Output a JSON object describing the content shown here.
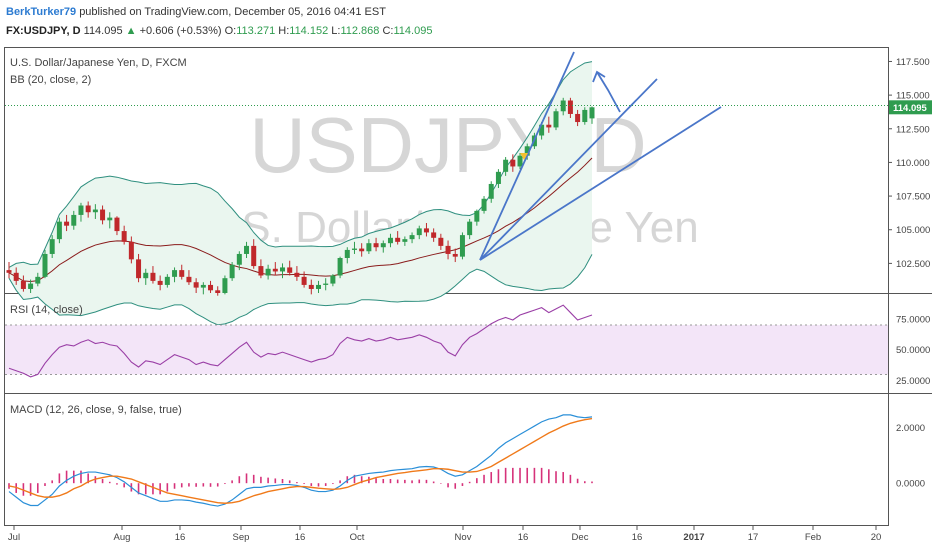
{
  "header": {
    "author": "BerkTurker79",
    "published": "published on TradingView.com, December 05, 2016 04:41 EST",
    "symbol": "FX:USDJPY, D",
    "price": "114.095",
    "change": "+0.606 (+0.53%)",
    "o_label": "O:",
    "o": "113.271",
    "h_label": "H:",
    "h": "114.152",
    "l_label": "L:",
    "l": "112.868",
    "c_label": "C:",
    "c": "114.095"
  },
  "watermark": {
    "symbol": "USDJPY, D",
    "name": "U.S. Dollar/Japanese Yen"
  },
  "panes": {
    "main": {
      "title": "U.S. Dollar/Japanese Yen, D, FXCM",
      "indicator": "BB (20, close, 2)"
    },
    "rsi": {
      "title": "RSI (14, close)"
    },
    "macd": {
      "title": "MACD (12, 26, close, 9, false, true)"
    }
  },
  "colors": {
    "up": "#2f9c4f",
    "down": "#c0282b",
    "bb_band": "#2f8f7f",
    "bb_basis": "#8a1c1c",
    "bb_fill": "#eaf6ef",
    "rsi_line": "#9a3fa6",
    "rsi_band": "#f3e5f8",
    "macd": "#2a8fd8",
    "signal": "#f07a1a",
    "hist": "#d6327a",
    "trendline": "#4a76c9"
  },
  "chart_data": [
    {
      "type": "candlestick",
      "title": "U.S. Dollar/Japanese Yen, D, FXCM",
      "ylim": [
        100.3,
        118.5
      ],
      "y_ticks": [
        "117.500",
        "115.000",
        "112.500",
        "110.000",
        "107.500",
        "105.000",
        "102.500"
      ],
      "last_price": "114.095",
      "x_ticks": [
        "Jul",
        "Aug",
        "16",
        "Sep",
        "16",
        "Oct",
        "Nov",
        "16",
        "Dec",
        "16",
        "2017",
        "17",
        "Feb",
        "20"
      ],
      "ohlc": [
        [
          102.0,
          102.6,
          101.4,
          101.8
        ],
        [
          101.8,
          102.2,
          100.9,
          101.2
        ],
        [
          101.2,
          101.6,
          100.4,
          100.6
        ],
        [
          100.6,
          101.3,
          100.3,
          101.0
        ],
        [
          101.0,
          101.8,
          100.8,
          101.5
        ],
        [
          101.5,
          103.5,
          101.4,
          103.2
        ],
        [
          103.2,
          104.6,
          102.9,
          104.3
        ],
        [
          104.3,
          105.9,
          104.0,
          105.6
        ],
        [
          105.6,
          106.1,
          104.9,
          105.3
        ],
        [
          105.3,
          106.4,
          105.0,
          106.1
        ],
        [
          106.1,
          107.0,
          105.6,
          106.8
        ],
        [
          106.8,
          107.1,
          105.9,
          106.3
        ],
        [
          106.3,
          106.9,
          105.8,
          106.5
        ],
        [
          106.5,
          106.8,
          105.4,
          105.7
        ],
        [
          105.7,
          106.3,
          105.1,
          105.9
        ],
        [
          105.9,
          106.0,
          104.6,
          104.9
        ],
        [
          104.9,
          105.3,
          103.9,
          104.1
        ],
        [
          104.1,
          104.5,
          102.5,
          102.8
        ],
        [
          102.8,
          103.2,
          101.1,
          101.4
        ],
        [
          101.4,
          102.1,
          100.9,
          101.8
        ],
        [
          101.8,
          102.3,
          101.0,
          101.2
        ],
        [
          101.2,
          101.6,
          100.5,
          100.9
        ],
        [
          100.9,
          101.7,
          100.7,
          101.5
        ],
        [
          101.5,
          102.2,
          101.1,
          102.0
        ],
        [
          102.0,
          102.4,
          101.3,
          101.5
        ],
        [
          101.5,
          102.0,
          100.9,
          101.1
        ],
        [
          101.1,
          101.4,
          100.3,
          100.7
        ],
        [
          100.7,
          101.1,
          100.2,
          100.9
        ],
        [
          100.9,
          101.2,
          100.3,
          100.5
        ],
        [
          100.5,
          100.8,
          100.1,
          100.3
        ],
        [
          100.3,
          101.6,
          100.2,
          101.4
        ],
        [
          101.4,
          102.6,
          101.2,
          102.4
        ],
        [
          102.4,
          103.4,
          102.0,
          103.2
        ],
        [
          103.2,
          104.1,
          102.9,
          103.8
        ],
        [
          103.8,
          104.3,
          102.1,
          102.3
        ],
        [
          102.3,
          102.8,
          101.4,
          101.6
        ],
        [
          101.6,
          102.4,
          101.3,
          102.1
        ],
        [
          102.1,
          102.6,
          101.6,
          101.9
        ],
        [
          101.9,
          102.5,
          101.4,
          102.2
        ],
        [
          102.2,
          102.7,
          101.6,
          101.8
        ],
        [
          101.8,
          102.3,
          101.2,
          101.5
        ],
        [
          101.5,
          101.9,
          100.7,
          100.9
        ],
        [
          100.9,
          101.3,
          100.2,
          100.6
        ],
        [
          100.6,
          101.2,
          100.3,
          100.9
        ],
        [
          100.9,
          101.4,
          100.5,
          101.0
        ],
        [
          101.0,
          101.7,
          100.8,
          101.6
        ],
        [
          101.6,
          103.0,
          101.4,
          102.9
        ],
        [
          102.9,
          103.7,
          102.5,
          103.5
        ],
        [
          103.5,
          104.1,
          103.2,
          103.6
        ],
        [
          103.6,
          104.0,
          103.0,
          103.4
        ],
        [
          103.4,
          104.3,
          103.2,
          104.0
        ],
        [
          104.0,
          104.4,
          103.4,
          103.7
        ],
        [
          103.7,
          104.2,
          103.3,
          104.0
        ],
        [
          104.0,
          104.7,
          103.7,
          104.4
        ],
        [
          104.4,
          104.9,
          103.9,
          104.1
        ],
        [
          104.1,
          104.5,
          103.8,
          104.3
        ],
        [
          104.3,
          104.8,
          104.0,
          104.6
        ],
        [
          104.6,
          105.3,
          104.3,
          105.1
        ],
        [
          105.1,
          105.5,
          104.5,
          104.8
        ],
        [
          104.8,
          105.1,
          104.1,
          104.4
        ],
        [
          104.4,
          104.7,
          103.5,
          103.8
        ],
        [
          103.8,
          104.2,
          102.8,
          103.2
        ],
        [
          103.2,
          103.6,
          102.6,
          103.0
        ],
        [
          103.0,
          104.8,
          102.8,
          104.6
        ],
        [
          104.6,
          105.8,
          104.3,
          105.6
        ],
        [
          105.6,
          106.5,
          105.3,
          106.4
        ],
        [
          106.4,
          107.5,
          106.2,
          107.3
        ],
        [
          107.3,
          108.6,
          107.0,
          108.4
        ],
        [
          108.4,
          109.5,
          108.1,
          109.3
        ],
        [
          109.3,
          110.4,
          109.0,
          110.2
        ],
        [
          110.2,
          110.6,
          109.3,
          109.7
        ],
        [
          109.7,
          110.7,
          109.5,
          110.5
        ],
        [
          110.5,
          111.4,
          110.2,
          111.2
        ],
        [
          111.2,
          112.2,
          111.0,
          112.0
        ],
        [
          112.0,
          113.0,
          111.7,
          112.8
        ],
        [
          112.8,
          113.4,
          112.2,
          112.6
        ],
        [
          112.6,
          114.0,
          112.4,
          113.8
        ],
        [
          113.8,
          114.8,
          113.5,
          114.6
        ],
        [
          114.6,
          114.8,
          113.3,
          113.6
        ],
        [
          113.6,
          113.9,
          112.7,
          113.0
        ],
        [
          113.0,
          114.1,
          112.8,
          113.9
        ],
        [
          113.271,
          114.152,
          112.868,
          114.095
        ]
      ]
    },
    {
      "type": "line",
      "title": "RSI (14, close)",
      "ylim": [
        15,
        95
      ],
      "y_ticks": [
        "75.0000",
        "50.0000",
        "25.0000"
      ],
      "band": [
        30,
        70
      ],
      "values": [
        35,
        33,
        31,
        28,
        30,
        39,
        46,
        52,
        54,
        53,
        56,
        58,
        55,
        56,
        54,
        53,
        47,
        40,
        36,
        41,
        40,
        38,
        42,
        46,
        44,
        42,
        38,
        40,
        38,
        37,
        42,
        47,
        52,
        56,
        48,
        44,
        47,
        46,
        48,
        46,
        44,
        42,
        40,
        42,
        43,
        46,
        55,
        60,
        58,
        57,
        59,
        57,
        58,
        60,
        58,
        59,
        60,
        62,
        60,
        57,
        55,
        48,
        45,
        54,
        60,
        63,
        67,
        71,
        74,
        76,
        74,
        78,
        80,
        82,
        84,
        80,
        83,
        86,
        80,
        74,
        76,
        78
      ]
    },
    {
      "type": "line",
      "title": "MACD (12, 26, close, 9, false, true)",
      "ylim": [
        -1.5,
        3.2
      ],
      "y_ticks": [
        "2.0000",
        "0.0000"
      ],
      "series": [
        {
          "name": "MACD",
          "values": [
            -0.3,
            -0.5,
            -0.7,
            -0.8,
            -0.8,
            -0.6,
            -0.4,
            -0.1,
            0.1,
            0.25,
            0.35,
            0.4,
            0.4,
            0.35,
            0.3,
            0.2,
            0.05,
            -0.15,
            -0.35,
            -0.45,
            -0.55,
            -0.65,
            -0.65,
            -0.6,
            -0.6,
            -0.62,
            -0.68,
            -0.72,
            -0.78,
            -0.82,
            -0.75,
            -0.6,
            -0.4,
            -0.2,
            -0.15,
            -0.15,
            -0.1,
            -0.08,
            -0.05,
            -0.05,
            -0.08,
            -0.15,
            -0.25,
            -0.3,
            -0.3,
            -0.25,
            -0.1,
            0.1,
            0.25,
            0.3,
            0.35,
            0.38,
            0.4,
            0.45,
            0.48,
            0.5,
            0.52,
            0.58,
            0.6,
            0.58,
            0.5,
            0.35,
            0.25,
            0.3,
            0.45,
            0.6,
            0.8,
            1.0,
            1.25,
            1.45,
            1.6,
            1.75,
            1.9,
            2.05,
            2.2,
            2.3,
            2.35,
            2.45,
            2.45,
            2.38,
            2.35,
            2.38
          ]
        },
        {
          "name": "Signal",
          "values": [
            -0.1,
            -0.15,
            -0.25,
            -0.35,
            -0.45,
            -0.5,
            -0.5,
            -0.45,
            -0.35,
            -0.2,
            -0.1,
            0.05,
            0.15,
            0.2,
            0.25,
            0.25,
            0.2,
            0.15,
            0.05,
            -0.05,
            -0.15,
            -0.25,
            -0.35,
            -0.4,
            -0.45,
            -0.5,
            -0.55,
            -0.6,
            -0.65,
            -0.7,
            -0.72,
            -0.7,
            -0.65,
            -0.55,
            -0.45,
            -0.38,
            -0.3,
            -0.25,
            -0.2,
            -0.15,
            -0.12,
            -0.12,
            -0.15,
            -0.18,
            -0.2,
            -0.22,
            -0.2,
            -0.15,
            -0.05,
            0.05,
            0.12,
            0.2,
            0.25,
            0.3,
            0.35,
            0.38,
            0.42,
            0.45,
            0.48,
            0.52,
            0.52,
            0.5,
            0.45,
            0.4,
            0.4,
            0.42,
            0.5,
            0.6,
            0.75,
            0.9,
            1.05,
            1.2,
            1.35,
            1.5,
            1.65,
            1.8,
            1.92,
            2.05,
            2.15,
            2.22,
            2.28,
            2.32
          ]
        }
      ]
    }
  ]
}
